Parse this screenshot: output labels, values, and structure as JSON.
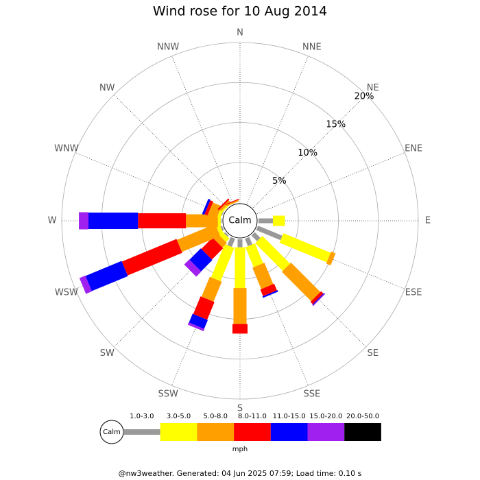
{
  "chart_data": {
    "type": "windrose",
    "title": "Wind rose for 10 Aug 2014",
    "directions": [
      "N",
      "NNE",
      "NE",
      "ENE",
      "E",
      "ESE",
      "SE",
      "SSE",
      "S",
      "SSW",
      "SW",
      "WSW",
      "W",
      "WNW",
      "NW",
      "NNW"
    ],
    "series": [
      {
        "name": "1.0-3.0",
        "color": "#999999",
        "values": [
          0,
          0,
          0,
          0,
          1.8,
          3.3,
          1.0,
          1.0,
          1.0,
          1.1,
          0.2,
          0.2,
          0.1,
          0.1,
          0,
          0
        ]
      },
      {
        "name": "3.0-5.0",
        "color": "#ffff00",
        "values": [
          0,
          0,
          0,
          0,
          1.5,
          6.4,
          4.9,
          2.7,
          5.1,
          4.5,
          0.6,
          0.5,
          0.35,
          0.4,
          0.2,
          0
        ]
      },
      {
        "name": "5.0-8.0",
        "color": "#ffa000",
        "values": [
          0,
          0,
          0,
          0,
          0,
          0.6,
          5.2,
          2.9,
          4.5,
          2.7,
          0.8,
          5.2,
          4.0,
          1.2,
          0.3,
          0.2
        ]
      },
      {
        "name": "8.0-11.0",
        "color": "#ff0000",
        "values": [
          0,
          0,
          0,
          0,
          0,
          0,
          0.4,
          0.9,
          1.2,
          2.4,
          2.0,
          7.4,
          6.0,
          0.4,
          0.2,
          0.1
        ]
      },
      {
        "name": "11.0-15.0",
        "color": "#0000ff",
        "values": [
          0,
          0,
          0,
          0,
          0,
          0,
          0.1,
          0.2,
          0,
          1.2,
          2.0,
          4.9,
          6.2,
          0.3,
          0,
          0
        ]
      },
      {
        "name": "15.0-20.0",
        "color": "#a020f0",
        "values": [
          0,
          0,
          0,
          0,
          0,
          0,
          0.1,
          0,
          0,
          0.3,
          0.9,
          0.8,
          1.2,
          0,
          0,
          0
        ]
      },
      {
        "name": "20.0-50.0",
        "color": "#000000",
        "values": [
          0,
          0,
          0,
          0,
          0,
          0,
          0,
          0,
          0,
          0,
          0,
          0,
          0,
          0,
          0,
          0
        ]
      }
    ],
    "calm_label": "Calm",
    "unit_label": "mph",
    "ylim": [
      0,
      20
    ],
    "yticks": [
      {
        "value": 5,
        "label": "5%"
      },
      {
        "value": 10,
        "label": "10%"
      },
      {
        "value": 15,
        "label": "15%"
      },
      {
        "value": 20,
        "label": "20%"
      }
    ],
    "grid": true
  },
  "footer": "@nw3weather. Generated: 04 Jun 2025 07:59; Load time: 0.10 s"
}
